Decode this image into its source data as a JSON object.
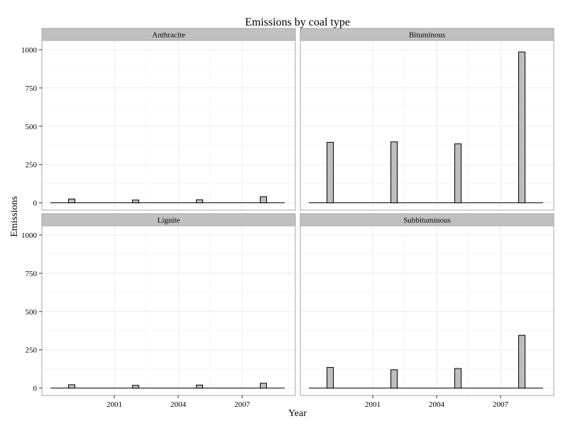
{
  "chart_data": {
    "type": "bar",
    "title": "Emissions by coal type",
    "xlabel": "Year",
    "ylabel": "Emissions",
    "x": [
      1999,
      2002,
      2005,
      2008
    ],
    "xticks": [
      "2001",
      "2004",
      "2007"
    ],
    "xtick_values": [
      2001,
      2004,
      2007
    ],
    "xlim": [
      1997.6,
      2009.5
    ],
    "yticks": [
      "0",
      "250",
      "500",
      "750",
      "1000"
    ],
    "ylim": [
      -48,
      1060
    ],
    "grid": true,
    "panels": [
      {
        "name": "Anthracite",
        "values": [
          25,
          18,
          20,
          40
        ]
      },
      {
        "name": "Bituminous",
        "values": [
          395,
          398,
          385,
          985
        ]
      },
      {
        "name": "Lignite",
        "values": [
          22,
          18,
          20,
          32
        ]
      },
      {
        "name": "Subbituminous",
        "values": [
          135,
          120,
          128,
          345
        ]
      }
    ],
    "colors": {
      "bar_fill": "#bebebe",
      "bar_stroke": "#000000",
      "strip_fill": "#c0c0c0",
      "panel_border": "#a6a6a6",
      "grid": "#ebebeb"
    }
  }
}
